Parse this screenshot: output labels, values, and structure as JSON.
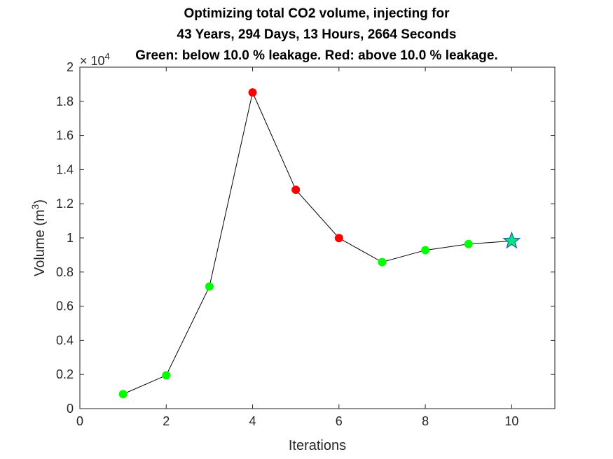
{
  "chart_data": {
    "type": "scatter",
    "title": [
      "Optimizing total CO2 volume, injecting for",
      "43 Years, 294 Days, 13 Hours, 2664 Seconds",
      "Green: below 10.0 % leakage. Red: above 10.0 % leakage."
    ],
    "xlabel": "Iterations",
    "ylabel_base": "Volume (m",
    "ylabel_sup": "3",
    "ylabel_end": ")",
    "y_exponent_base": "× 10",
    "y_exponent_power": "4",
    "xlim": [
      0,
      11
    ],
    "ylim": [
      0,
      20000
    ],
    "x_ticks": [
      0,
      2,
      4,
      6,
      8,
      10
    ],
    "x_tick_labels": [
      "0",
      "2",
      "4",
      "6",
      "8",
      "10"
    ],
    "y_ticks": [
      0,
      2000,
      4000,
      6000,
      8000,
      10000,
      12000,
      14000,
      16000,
      18000,
      20000
    ],
    "y_tick_labels": [
      "0",
      "0.2",
      "0.4",
      "0.6",
      "0.8",
      "1",
      "1.2",
      "1.4",
      "1.6",
      "1.8",
      "2"
    ],
    "grid": false,
    "points": [
      {
        "x": 1,
        "y": 850,
        "status": "green"
      },
      {
        "x": 2,
        "y": 1950,
        "status": "green"
      },
      {
        "x": 3,
        "y": 7150,
        "status": "green"
      },
      {
        "x": 4,
        "y": 18520,
        "status": "red"
      },
      {
        "x": 5,
        "y": 12820,
        "status": "red"
      },
      {
        "x": 6,
        "y": 9990,
        "status": "red"
      },
      {
        "x": 7,
        "y": 8580,
        "status": "green"
      },
      {
        "x": 8,
        "y": 9280,
        "status": "green"
      },
      {
        "x": 9,
        "y": 9640,
        "status": "green"
      }
    ],
    "best": {
      "x": 10,
      "y": 9820,
      "marker": "star"
    },
    "colors": {
      "green": "#00ff00",
      "red": "#ff0000",
      "line": "#000000",
      "star_fill": "#00e87a",
      "star_edge": "#1f5fa8",
      "axis": "#262626"
    }
  }
}
